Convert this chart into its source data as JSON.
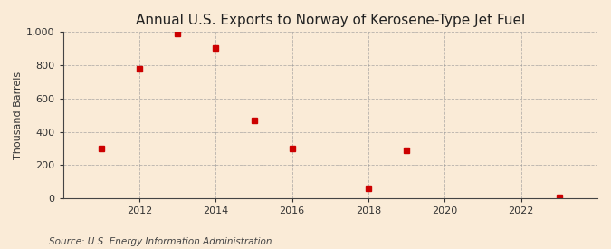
{
  "title": "Annual U.S. Exports to Norway of Kerosene-Type Jet Fuel",
  "ylabel": "Thousand Barrels",
  "source": "Source: U.S. Energy Information Administration",
  "background_color": "#faebd7",
  "plot_background_color": "#faebd7",
  "grid_color": "#999999",
  "marker_color": "#cc0000",
  "x_values": [
    2011,
    2012,
    2013,
    2014,
    2015,
    2016,
    2018,
    2019,
    2023
  ],
  "y_values": [
    300,
    780,
    990,
    905,
    470,
    300,
    60,
    290,
    5
  ],
  "xlim": [
    2010.0,
    2024.0
  ],
  "ylim": [
    0,
    1000
  ],
  "yticks": [
    0,
    200,
    400,
    600,
    800,
    1000
  ],
  "xticks": [
    2012,
    2014,
    2016,
    2018,
    2020,
    2022
  ],
  "title_fontsize": 11,
  "label_fontsize": 8,
  "tick_fontsize": 8,
  "source_fontsize": 7.5
}
